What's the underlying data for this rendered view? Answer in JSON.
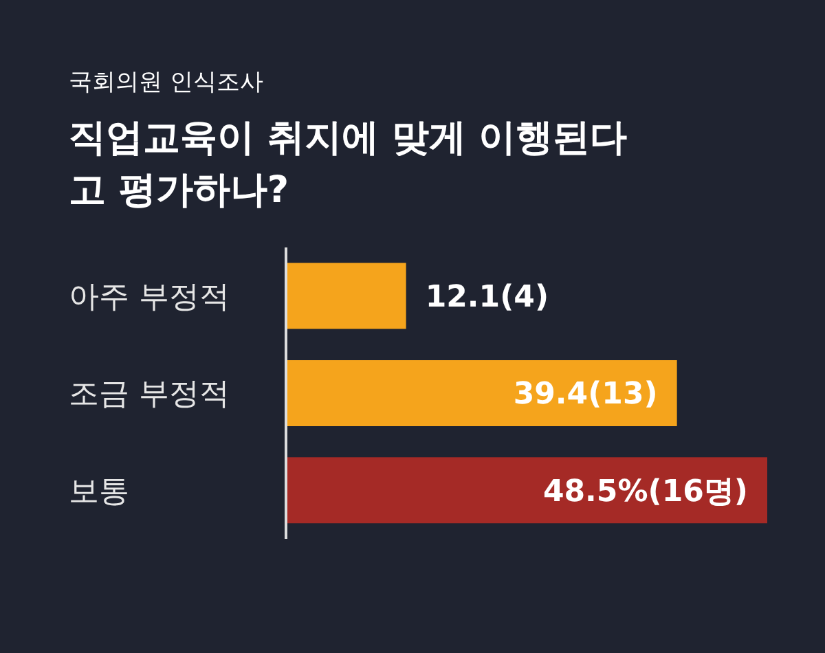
{
  "chart_data": {
    "type": "bar",
    "orientation": "horizontal",
    "subtitle": "국회의원 인식조사",
    "title": "직업교육이 취지에 맞게 이행된다고 평가하나?",
    "categories": [
      "아주 부정적",
      "조금 부정적",
      "보통"
    ],
    "values": [
      12.1,
      39.4,
      48.5
    ],
    "colors": [
      "#f5a41c",
      "#f5a41c",
      "#a52a26"
    ],
    "value_labels": [
      "12.1(4)",
      "39.4(13)",
      "48.5%(16명)"
    ]
  }
}
